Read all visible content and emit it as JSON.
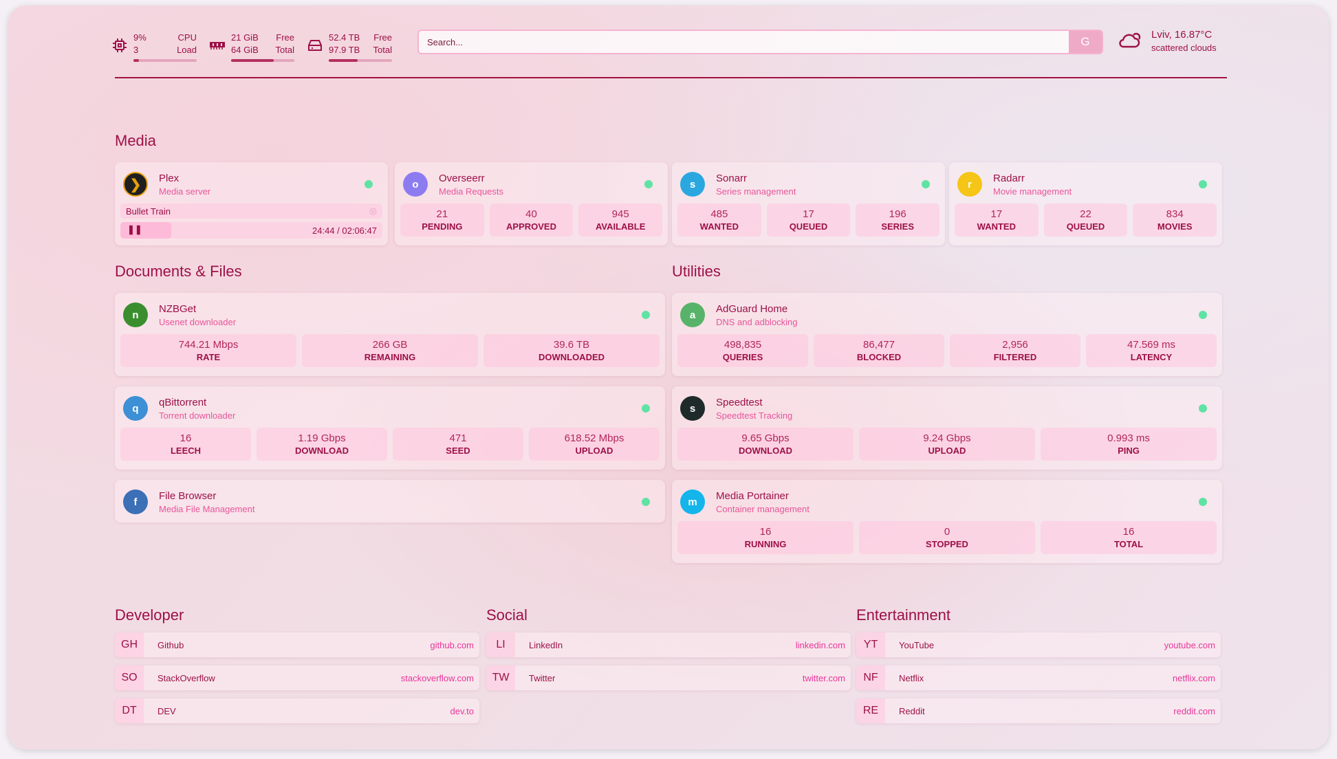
{
  "resources": {
    "cpu": {
      "icon": "cpu-icon",
      "value": "9%",
      "value2": "3",
      "label": "CPU",
      "label2": "Load",
      "usage": 0.09
    },
    "memory": {
      "icon": "memory-icon",
      "value": "21 GiB",
      "value2": "64 GiB",
      "label": "Free",
      "label2": "Total",
      "usage": 0.67
    },
    "disk": {
      "icon": "disk-icon",
      "value": "52.4 TB",
      "value2": "97.9 TB",
      "label": "Free",
      "label2": "Total",
      "usage": 0.46
    }
  },
  "search": {
    "placeholder": "Search...",
    "button": "G"
  },
  "weather": {
    "icon": "cloud-sun-icon",
    "location": "Lviv, 16.87°C",
    "condition": "scattered clouds"
  },
  "colors": {
    "accent": "#9c1047",
    "subtitle": "#e8559a",
    "status_up": "#5fe3a4"
  },
  "media": {
    "title": "Media",
    "plex": {
      "name": "Plex",
      "desc": "Media server",
      "now_playing": "Bullet Train",
      "time": "24:44 / 02:06:47",
      "progress": 0.195
    },
    "services": [
      {
        "name": "Overseerr",
        "desc": "Media Requests",
        "icon": "overseerr-icon",
        "color": "#8d7cf0",
        "stats": [
          [
            "21",
            "PENDING"
          ],
          [
            "40",
            "APPROVED"
          ],
          [
            "945",
            "AVAILABLE"
          ]
        ]
      },
      {
        "name": "Sonarr",
        "desc": "Series management",
        "icon": "sonarr-icon",
        "color": "#2aa7df",
        "stats": [
          [
            "485",
            "WANTED"
          ],
          [
            "17",
            "QUEUED"
          ],
          [
            "196",
            "SERIES"
          ]
        ]
      },
      {
        "name": "Radarr",
        "desc": "Movie management",
        "icon": "radarr-icon",
        "color": "#f5c518",
        "stats": [
          [
            "17",
            "WANTED"
          ],
          [
            "22",
            "QUEUED"
          ],
          [
            "834",
            "MOVIES"
          ]
        ]
      }
    ]
  },
  "documents": {
    "title": "Documents & Files",
    "services": [
      {
        "name": "NZBGet",
        "desc": "Usenet downloader",
        "icon": "nzbget-icon",
        "color": "#3a8e2e",
        "stats": [
          [
            "744.21 Mbps",
            "RATE"
          ],
          [
            "266 GB",
            "REMAINING"
          ],
          [
            "39.6 TB",
            "DOWNLOADED"
          ]
        ]
      },
      {
        "name": "qBittorrent",
        "desc": "Torrent downloader",
        "icon": "qbittorrent-icon",
        "color": "#3d8fd6",
        "stats": [
          [
            "16",
            "LEECH"
          ],
          [
            "1.19 Gbps",
            "DOWNLOAD"
          ],
          [
            "471",
            "SEED"
          ],
          [
            "618.52 Mbps",
            "UPLOAD"
          ]
        ]
      },
      {
        "name": "File Browser",
        "desc": "Media File Management",
        "icon": "filebrowser-icon",
        "color": "#3b6fb6",
        "stats": []
      }
    ]
  },
  "utilities": {
    "title": "Utilities",
    "services": [
      {
        "name": "AdGuard Home",
        "desc": "DNS and adblocking",
        "icon": "adguard-icon",
        "color": "#57b36a",
        "stats": [
          [
            "498,835",
            "QUERIES"
          ],
          [
            "86,477",
            "BLOCKED"
          ],
          [
            "2,956",
            "FILTERED"
          ],
          [
            "47.569 ms",
            "LATENCY"
          ]
        ]
      },
      {
        "name": "Speedtest",
        "desc": "Speedtest Tracking",
        "icon": "speedtest-icon",
        "color": "#1f2a2a",
        "stats": [
          [
            "9.65 Gbps",
            "DOWNLOAD"
          ],
          [
            "9.24 Gbps",
            "UPLOAD"
          ],
          [
            "0.993 ms",
            "PING"
          ]
        ]
      },
      {
        "name": "Media Portainer",
        "desc": "Container management",
        "icon": "portainer-icon",
        "color": "#13b5ea",
        "stats": [
          [
            "16",
            "RUNNING"
          ],
          [
            "0",
            "STOPPED"
          ],
          [
            "16",
            "TOTAL"
          ]
        ]
      }
    ]
  },
  "bookmarks": [
    {
      "title": "Developer",
      "items": [
        {
          "abbr": "GH",
          "name": "Github",
          "url": "github.com"
        },
        {
          "abbr": "SO",
          "name": "StackOverflow",
          "url": "stackoverflow.com"
        },
        {
          "abbr": "DT",
          "name": "DEV",
          "url": "dev.to"
        }
      ]
    },
    {
      "title": "Social",
      "items": [
        {
          "abbr": "LI",
          "name": "LinkedIn",
          "url": "linkedin.com"
        },
        {
          "abbr": "TW",
          "name": "Twitter",
          "url": "twitter.com"
        }
      ]
    },
    {
      "title": "Entertainment",
      "items": [
        {
          "abbr": "YT",
          "name": "YouTube",
          "url": "youtube.com"
        },
        {
          "abbr": "NF",
          "name": "Netflix",
          "url": "netflix.com"
        },
        {
          "abbr": "RE",
          "name": "Reddit",
          "url": "reddit.com"
        }
      ]
    }
  ]
}
